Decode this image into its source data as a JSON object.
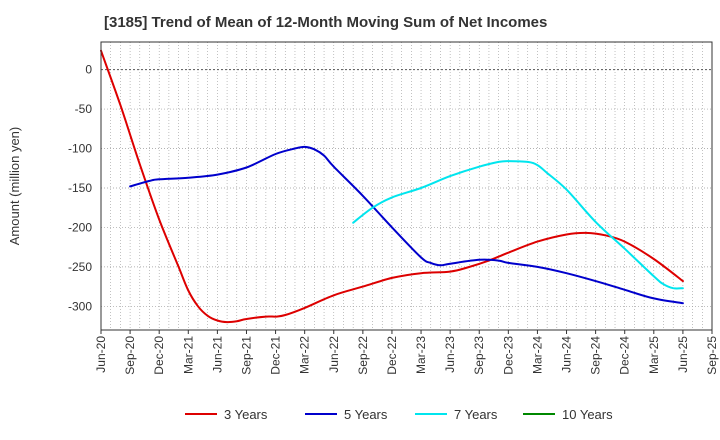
{
  "chart_data": {
    "type": "line",
    "title": "[3185]  Trend of Mean of 12-Month Moving Sum of Net Incomes",
    "ylabel": "Amount (million yen)",
    "xlabel": "",
    "ylim": [
      -330,
      35
    ],
    "y_ticks": [
      0,
      -50,
      -100,
      -150,
      -200,
      -250,
      -300
    ],
    "x_range": [
      "Jun-20",
      "Sep-25"
    ],
    "x_ticks": [
      "Jun-20",
      "Sep-20",
      "Dec-20",
      "Mar-21",
      "Jun-21",
      "Sep-21",
      "Dec-21",
      "Mar-22",
      "Jun-22",
      "Sep-22",
      "Dec-22",
      "Mar-23",
      "Jun-23",
      "Sep-23",
      "Dec-23",
      "Mar-24",
      "Jun-24",
      "Sep-24",
      "Dec-24",
      "Mar-25",
      "Jun-25",
      "Sep-25"
    ],
    "grid": true,
    "legend_position": "bottom",
    "series": [
      {
        "name": "3 Years",
        "color": "#dd0000",
        "points": [
          [
            "Jun-20",
            24
          ],
          [
            "Aug-20",
            -45
          ],
          [
            "Oct-20",
            -120
          ],
          [
            "Dec-20",
            -190
          ],
          [
            "Feb-21",
            -250
          ],
          [
            "Mar-21",
            -280
          ],
          [
            "Apr-21",
            -300
          ],
          [
            "May-21",
            -312
          ],
          [
            "Jun-21",
            -318
          ],
          [
            "Jul-21",
            -320
          ],
          [
            "Aug-21",
            -319
          ],
          [
            "Sep-21",
            -316
          ],
          [
            "Nov-21",
            -313
          ],
          [
            "Dec-21",
            -313
          ],
          [
            "Jan-22",
            -311
          ],
          [
            "Mar-22",
            -302
          ],
          [
            "Jun-22",
            -286
          ],
          [
            "Sep-22",
            -275
          ],
          [
            "Dec-22",
            -264
          ],
          [
            "Mar-23",
            -258
          ],
          [
            "Jun-23",
            -256
          ],
          [
            "Aug-23",
            -250
          ],
          [
            "Oct-23",
            -242
          ],
          [
            "Dec-23",
            -232
          ],
          [
            "Mar-24",
            -218
          ],
          [
            "Jun-24",
            -209
          ],
          [
            "Aug-24",
            -207
          ],
          [
            "Oct-24",
            -210
          ],
          [
            "Dec-24",
            -218
          ],
          [
            "Mar-25",
            -240
          ],
          [
            "Jun-25",
            -268
          ]
        ]
      },
      {
        "name": "5 Years",
        "color": "#0000cc",
        "points": [
          [
            "Sep-20",
            -148
          ],
          [
            "Nov-20",
            -141
          ],
          [
            "Dec-20",
            -139
          ],
          [
            "Mar-21",
            -137
          ],
          [
            "Jun-21",
            -133
          ],
          [
            "Sep-21",
            -124
          ],
          [
            "Dec-21",
            -107
          ],
          [
            "Feb-22",
            -100
          ],
          [
            "Mar-22",
            -98
          ],
          [
            "Apr-22",
            -101
          ],
          [
            "May-22",
            -109
          ],
          [
            "Jun-22",
            -123
          ],
          [
            "Sep-22",
            -160
          ],
          [
            "Dec-22",
            -200
          ],
          [
            "Mar-23",
            -238
          ],
          [
            "Apr-23",
            -245
          ],
          [
            "May-23",
            -248
          ],
          [
            "Jun-23",
            -246
          ],
          [
            "Sep-23",
            -241
          ],
          [
            "Nov-23",
            -242
          ],
          [
            "Dec-23",
            -245
          ],
          [
            "Mar-24",
            -250
          ],
          [
            "Jun-24",
            -258
          ],
          [
            "Sep-24",
            -268
          ],
          [
            "Dec-24",
            -279
          ],
          [
            "Mar-25",
            -290
          ],
          [
            "Jun-25",
            -296
          ]
        ]
      },
      {
        "name": "7 Years",
        "color": "#00e5ee",
        "points": [
          [
            "Aug-22",
            -194
          ],
          [
            "Oct-22",
            -175
          ],
          [
            "Dec-22",
            -162
          ],
          [
            "Mar-23",
            -150
          ],
          [
            "Jun-23",
            -135
          ],
          [
            "Sep-23",
            -123
          ],
          [
            "Nov-23",
            -117
          ],
          [
            "Dec-23",
            -116
          ],
          [
            "Feb-24",
            -117
          ],
          [
            "Mar-24",
            -121
          ],
          [
            "Apr-24",
            -131
          ],
          [
            "Jun-24",
            -152
          ],
          [
            "Sep-24",
            -193
          ],
          [
            "Dec-24",
            -227
          ],
          [
            "Mar-25",
            -262
          ],
          [
            "Apr-25",
            -272
          ],
          [
            "May-25",
            -277
          ],
          [
            "Jun-25",
            -277
          ]
        ]
      },
      {
        "name": "10 Years",
        "color": "#008800",
        "points": []
      }
    ]
  }
}
